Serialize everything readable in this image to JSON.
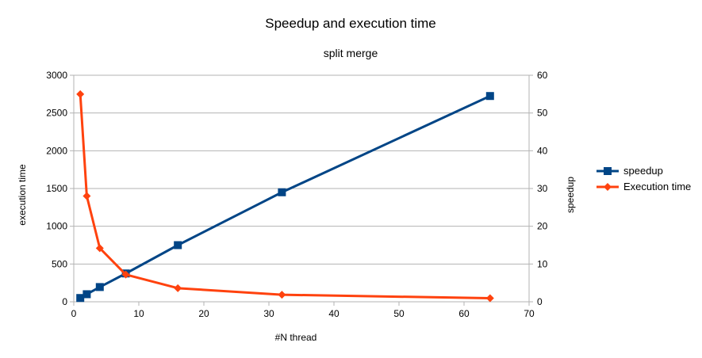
{
  "chart_data": {
    "type": "line",
    "title": "Speedup and execution time",
    "subtitle": "split merge",
    "xlabel": "#N thread",
    "ylabel_left": "execution time",
    "ylabel_right": "speedup",
    "xlim": [
      0,
      70
    ],
    "ylim_left": [
      0,
      3000
    ],
    "ylim_right": [
      0,
      60
    ],
    "x_ticks": [
      0,
      10,
      20,
      30,
      40,
      50,
      60,
      70
    ],
    "y_ticks_left": [
      0,
      500,
      1000,
      1500,
      2000,
      2500,
      3000
    ],
    "y_ticks_right": [
      0,
      10,
      20,
      30,
      40,
      50,
      60
    ],
    "grid": true,
    "legend_position": "right",
    "series": [
      {
        "name": "speedup",
        "axis": "right",
        "color": "#004586",
        "marker": "square",
        "points": [
          [
            1,
            1
          ],
          [
            2,
            2
          ],
          [
            4,
            3.9
          ],
          [
            8,
            7.5
          ],
          [
            16,
            15
          ],
          [
            32,
            29
          ],
          [
            64,
            54.5
          ]
        ]
      },
      {
        "name": "Execution time",
        "axis": "left",
        "color": "#ff420e",
        "marker": "diamond",
        "points": [
          [
            1,
            2750
          ],
          [
            2,
            1400
          ],
          [
            4,
            710
          ],
          [
            8,
            360
          ],
          [
            16,
            180
          ],
          [
            32,
            93
          ],
          [
            64,
            47
          ]
        ]
      }
    ]
  }
}
